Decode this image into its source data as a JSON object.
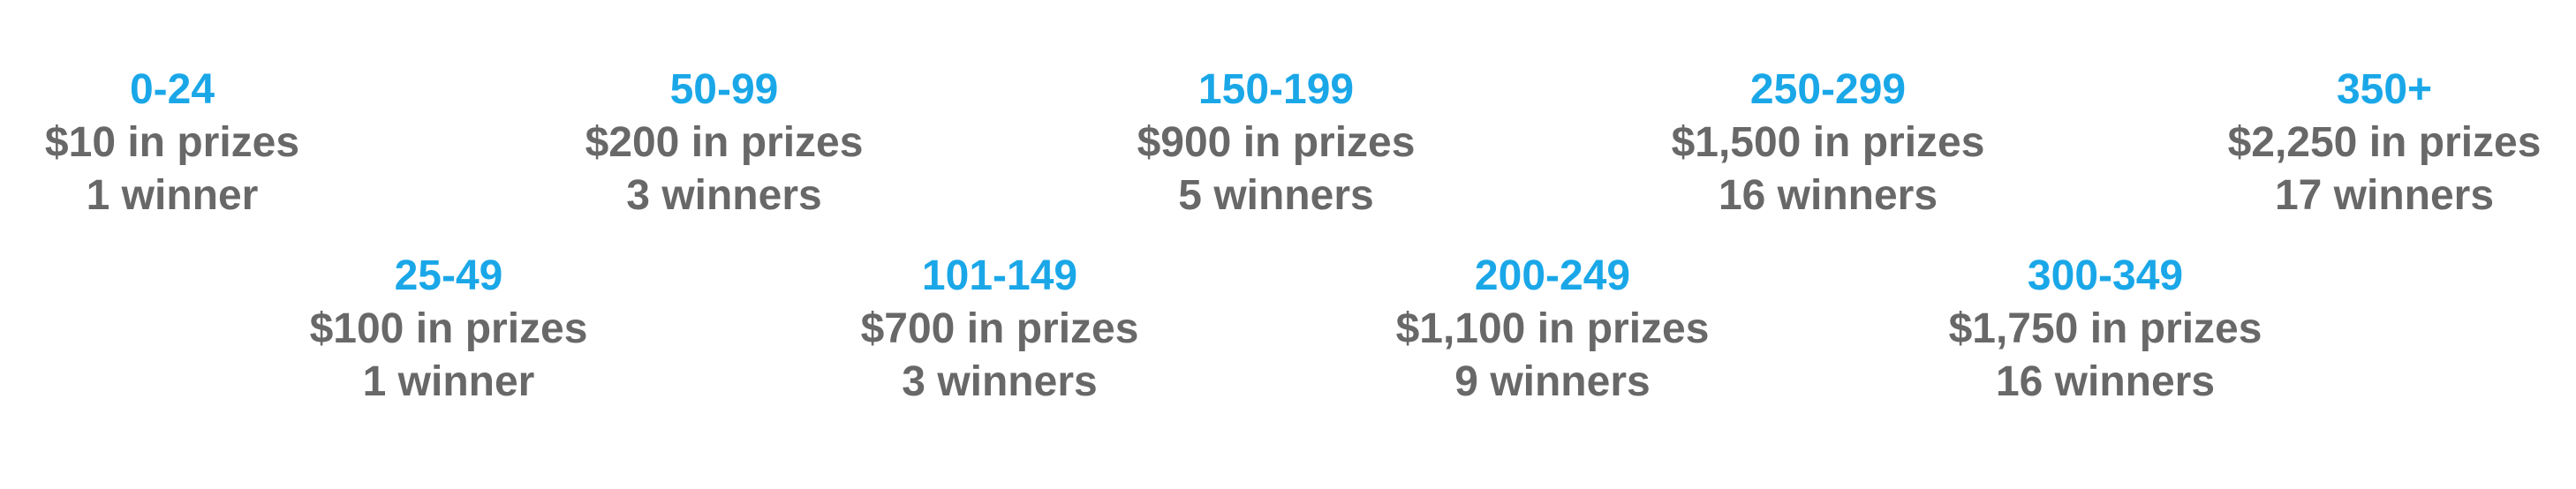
{
  "tiers": [
    {
      "range": "0-24",
      "prize": "$10 in prizes",
      "winners": "1 winner"
    },
    {
      "range": "25-49",
      "prize": "$100 in prizes",
      "winners": "1 winner"
    },
    {
      "range": "50-99",
      "prize": "$200 in prizes",
      "winners": "3 winners"
    },
    {
      "range": "101-149",
      "prize": "$700 in prizes",
      "winners": "3 winners"
    },
    {
      "range": "150-199",
      "prize": "$900 in prizes",
      "winners": "5 winners"
    },
    {
      "range": "200-249",
      "prize": "$1,100 in prizes",
      "winners": "9 winners"
    },
    {
      "range": "250-299",
      "prize": "$1,500 in prizes",
      "winners": "16 winners"
    },
    {
      "range": "300-349",
      "prize": "$1,750 in prizes",
      "winners": "16 winners"
    },
    {
      "range": "350+",
      "prize": "$2,250 in prizes",
      "winners": "17 winners"
    }
  ],
  "colors": {
    "range_text": "#1aa7e8",
    "body_text": "#686868",
    "background": "#ffffff"
  }
}
